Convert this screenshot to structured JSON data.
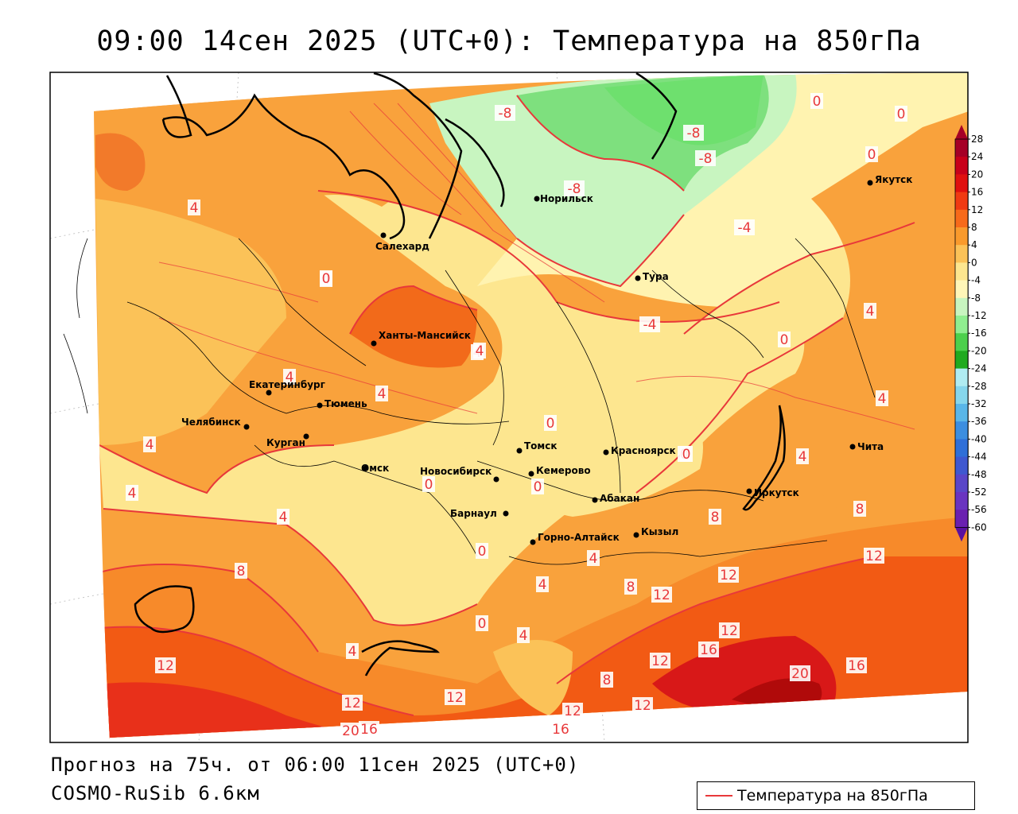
{
  "title": "09:00 14сен 2025 (UTC+0): Температура на 850гПа",
  "forecast_text": "Прогноз на 75ч. от 06:00 11сен 2025 (UTC+0)",
  "model_text": "COSMO-RuSib 6.6км",
  "legend_label": "Температура на 850гПа",
  "legend_color": "#e8383a",
  "colorbar": {
    "ticks": [
      "28",
      "24",
      "20",
      "16",
      "12",
      "8",
      "4",
      "0",
      "-4",
      "-8",
      "-12",
      "-16",
      "-20",
      "-24",
      "-28",
      "-32",
      "-36",
      "-40",
      "-44",
      "-48",
      "-52",
      "-56",
      "-60"
    ],
    "colors": [
      "#a50026",
      "#c8001a",
      "#e0100f",
      "#f03a12",
      "#f76a1a",
      "#f99a2c",
      "#fbc258",
      "#fde68f",
      "#fff6b8",
      "#c8f5c0",
      "#90ee90",
      "#4cd04c",
      "#1faa1f",
      "#b0ecf2",
      "#86d6ec",
      "#5ab6e8",
      "#3c8ee0",
      "#2f6fd8",
      "#3f58d0",
      "#5a46c8",
      "#6a34c0",
      "#6a20b0",
      "#5a10a0"
    ]
  },
  "cities": [
    {
      "name": "Норильск"
    },
    {
      "name": "Якутск"
    },
    {
      "name": "Салехард"
    },
    {
      "name": "Тура"
    },
    {
      "name": "Ханты-Мансийск"
    },
    {
      "name": "Екатеринбург"
    },
    {
      "name": "Тюмень"
    },
    {
      "name": "Челябинск"
    },
    {
      "name": "Курган"
    },
    {
      "name": "Томск"
    },
    {
      "name": "Красноярск"
    },
    {
      "name": "Омск"
    },
    {
      "name": "Новосибирск"
    },
    {
      "name": "Кемерово"
    },
    {
      "name": "Абакан"
    },
    {
      "name": "Иркутск"
    },
    {
      "name": "Чита"
    },
    {
      "name": "Барнаул"
    },
    {
      "name": "Горно-Алтайск"
    },
    {
      "name": "Кызыл"
    }
  ],
  "contour_labels": [
    "-8",
    "0",
    "-8",
    "-8",
    "-8",
    "-4",
    "-4",
    "0",
    "0",
    "0",
    "0",
    "4",
    "4",
    "4",
    "4",
    "4",
    "4",
    "4",
    "4",
    "4",
    "4",
    "4",
    "4",
    "8",
    "0",
    "0",
    "0",
    "0",
    "0",
    "0",
    "0",
    "4",
    "4",
    "8",
    "8",
    "8",
    "12",
    "12",
    "12",
    "12",
    "12",
    "12",
    "12",
    "12",
    "12",
    "12",
    "16",
    "16",
    "16",
    "16",
    "20",
    "20",
    "4",
    "8",
    "4"
  ],
  "color_map": {
    "frame": "#000000",
    "coast": "#000000",
    "border": "#000000",
    "contour": "#e8383a"
  }
}
